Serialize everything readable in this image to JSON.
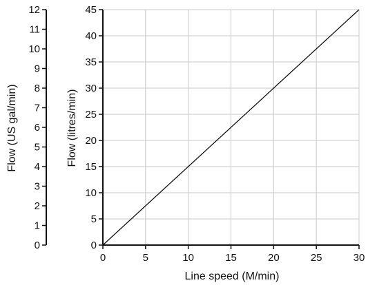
{
  "chart_data": {
    "type": "line",
    "xlabel": "Line speed (M/min)",
    "ylabel": "Flow (litres/min)",
    "ylabel_secondary": "Flow (US gal/min)",
    "xlim": [
      0,
      30
    ],
    "ylim": [
      0,
      45
    ],
    "ylim_secondary": [
      0,
      12
    ],
    "x_ticks": [
      0,
      5,
      10,
      15,
      20,
      25,
      30
    ],
    "y_ticks": [
      0,
      5,
      10,
      15,
      20,
      25,
      30,
      35,
      40,
      45
    ],
    "y_secondary_ticks": [
      0,
      1,
      2,
      3,
      4,
      5,
      6,
      7,
      8,
      9,
      10,
      11,
      12
    ],
    "grid": true,
    "series": [
      {
        "x": [
          0,
          30
        ],
        "y": [
          0,
          45
        ]
      }
    ],
    "colors": {
      "line": "#111111",
      "axis": "#111111",
      "grid": "#c8c8c8"
    }
  }
}
